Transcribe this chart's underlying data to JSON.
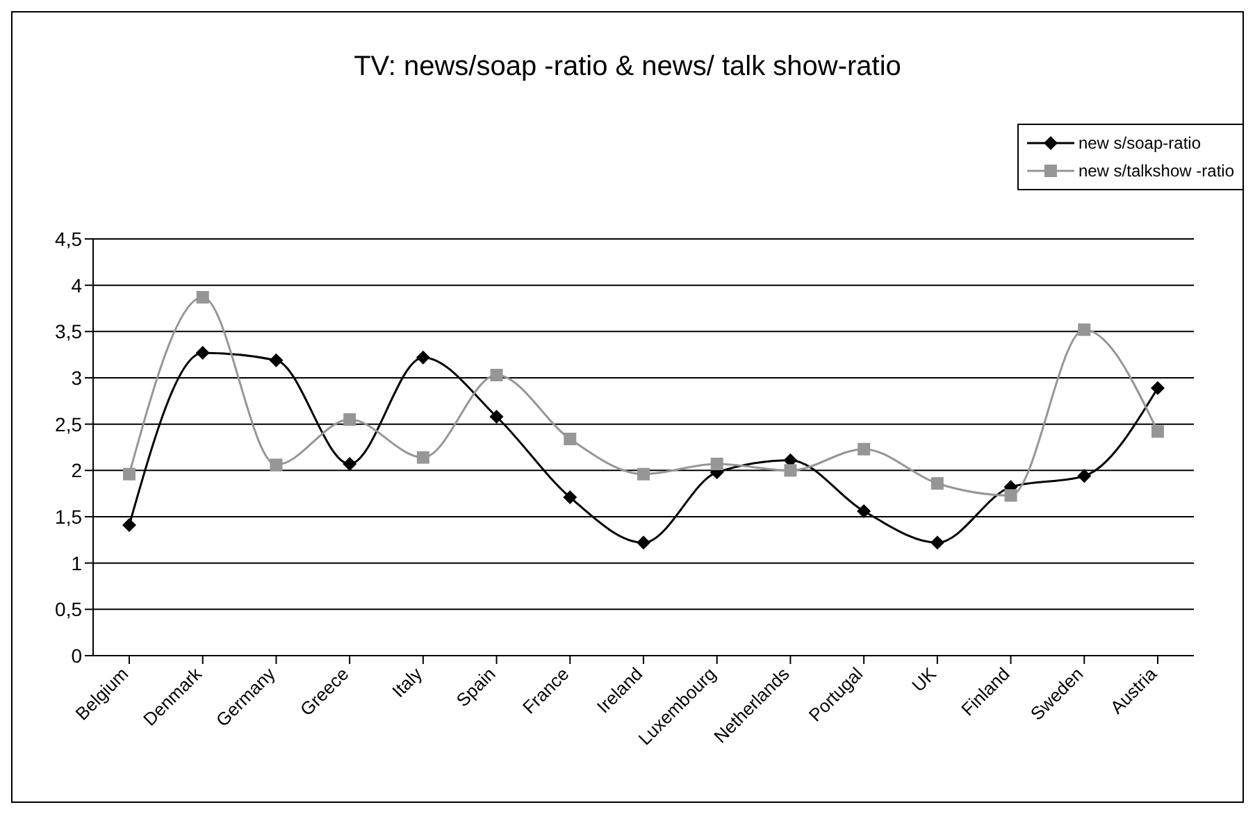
{
  "chart_data": {
    "type": "line",
    "title": "TV: news/soap -ratio & news/ talk show-ratio",
    "categories": [
      "Belgium",
      "Denmark",
      "Germany",
      "Greece",
      "Italy",
      "Spain",
      "France",
      "Ireland",
      "Luxembourg",
      "Netherlands",
      "Portugal",
      "UK",
      "Finland",
      "Sweden",
      "Austria"
    ],
    "series": [
      {
        "name": "new s/soap-ratio",
        "color": "#000000",
        "marker": "diamond",
        "values": [
          1.41,
          3.27,
          3.19,
          2.07,
          3.22,
          2.58,
          1.71,
          1.22,
          1.98,
          2.11,
          1.56,
          1.22,
          1.82,
          1.94,
          2.89
        ]
      },
      {
        "name": "new s/talkshow -ratio",
        "color": "#969696",
        "marker": "square",
        "values": [
          1.96,
          3.87,
          2.06,
          2.55,
          2.14,
          3.03,
          2.34,
          1.96,
          2.07,
          2.0,
          2.23,
          1.86,
          1.73,
          3.52,
          2.42
        ]
      }
    ],
    "ylim": [
      0,
      4.5
    ],
    "yticks": [
      {
        "value": 0,
        "label": "0"
      },
      {
        "value": 0.5,
        "label": "0,5"
      },
      {
        "value": 1,
        "label": "1"
      },
      {
        "value": 1.5,
        "label": "1,5"
      },
      {
        "value": 2,
        "label": "2"
      },
      {
        "value": 2.5,
        "label": "2,5"
      },
      {
        "value": 3,
        "label": "3"
      },
      {
        "value": 3.5,
        "label": "3,5"
      },
      {
        "value": 4,
        "label": "4"
      },
      {
        "value": 4.5,
        "label": "4,5"
      }
    ],
    "grid": "y",
    "legend": "top right",
    "line_style": "solid"
  }
}
